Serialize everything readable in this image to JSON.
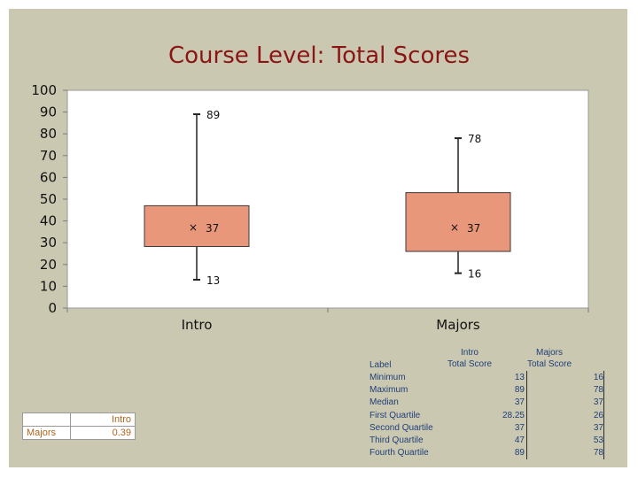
{
  "title": "Course Level: Total Scores",
  "chart_data": {
    "type": "box",
    "title": "Course Level: Total Scores",
    "ylim": [
      0,
      100
    ],
    "yticks": [
      0,
      10,
      20,
      30,
      40,
      50,
      60,
      70,
      80,
      90,
      100
    ],
    "categories": [
      "Intro",
      "Majors"
    ],
    "boxes": [
      {
        "name": "Intro",
        "min": 13,
        "q1": 28.25,
        "median": 37,
        "mean": 37,
        "q3": 47,
        "max": 89
      },
      {
        "name": "Majors",
        "min": 16,
        "q1": 26,
        "median": 37,
        "mean": 37,
        "q3": 53,
        "max": 78
      }
    ],
    "data_labels": [
      "89",
      "37",
      "13",
      "78",
      "37",
      "16"
    ]
  },
  "correlation_table": {
    "col_header": "Intro",
    "row_header": "Majors",
    "value": "0.39"
  },
  "stats_table": {
    "header_label": "Label",
    "col1_header_lines": [
      "Intro",
      "Total Score"
    ],
    "col2_header_lines": [
      "Majors",
      "Total Score"
    ],
    "rows": [
      {
        "label": "Minimum",
        "intro": "13",
        "majors": "16"
      },
      {
        "label": "Maximum",
        "intro": "89",
        "majors": "78"
      },
      {
        "label": "Median",
        "intro": "37",
        "majors": "37"
      },
      {
        "label": "First Quartile",
        "intro": "28.25",
        "majors": "26"
      },
      {
        "label": "Second Quartile",
        "intro": "37",
        "majors": "37"
      },
      {
        "label": "Third Quartile",
        "intro": "47",
        "majors": "53"
      },
      {
        "label": "Fourth Quartile",
        "intro": "89",
        "majors": "78"
      }
    ]
  },
  "colors": {
    "background": "#cbc8b1",
    "plot_area": "#ffffff",
    "box_fill": "#e8977a",
    "title": "#8b1515",
    "stats_text": "#1f3f78",
    "table_text": "#b0661a"
  }
}
